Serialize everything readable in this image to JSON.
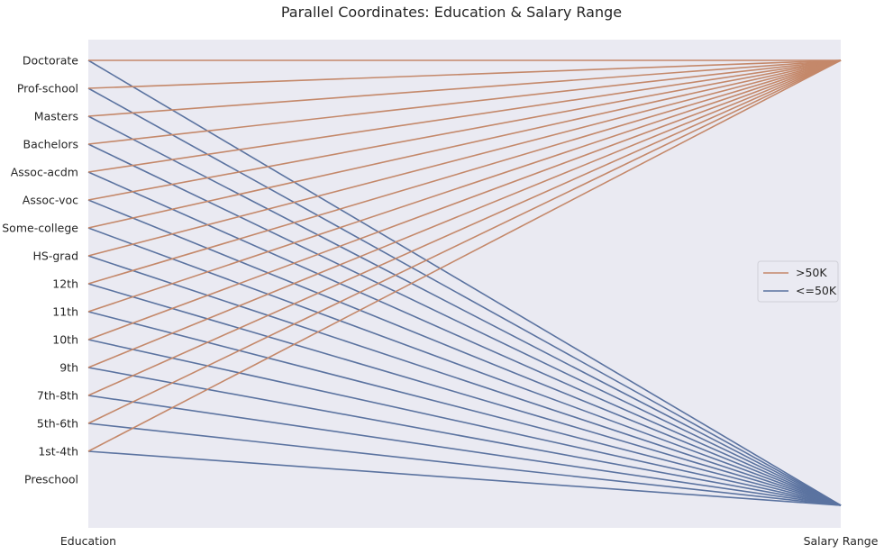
{
  "chart_data": {
    "type": "line",
    "subtype": "parallel-coordinates",
    "title": "Parallel Coordinates: Education & Salary Range",
    "axes": [
      "Education",
      "Salary Range"
    ],
    "education_levels": [
      "Doctorate",
      "Prof-school",
      "Masters",
      "Bachelors",
      "Assoc-acdm",
      "Assoc-voc",
      "Some-college",
      "HS-grad",
      "12th",
      "11th",
      "10th",
      "9th",
      "7th-8th",
      "5th-6th",
      "1st-4th",
      "Preschool"
    ],
    "salary_levels": [
      ">50K",
      "<=50K"
    ],
    "series": [
      {
        "name": ">50K",
        "color": "#c4886a",
        "connects_from": [
          "Doctorate",
          "Prof-school",
          "Masters",
          "Bachelors",
          "Assoc-acdm",
          "Assoc-voc",
          "Some-college",
          "HS-grad",
          "12th",
          "11th",
          "10th",
          "9th",
          "7th-8th",
          "5th-6th",
          "1st-4th"
        ]
      },
      {
        "name": "<=50K",
        "color": "#5b73a0",
        "connects_from": [
          "Doctorate",
          "Prof-school",
          "Masters",
          "Bachelors",
          "Assoc-acdm",
          "Assoc-voc",
          "Some-college",
          "HS-grad",
          "12th",
          "11th",
          "10th",
          "9th",
          "7th-8th",
          "5th-6th",
          "1st-4th"
        ]
      }
    ],
    "legend": {
      "entries": [
        ">50K",
        "<=50K"
      ],
      "placement": "right"
    },
    "grid": false,
    "background_color": "#eaeaf2"
  }
}
